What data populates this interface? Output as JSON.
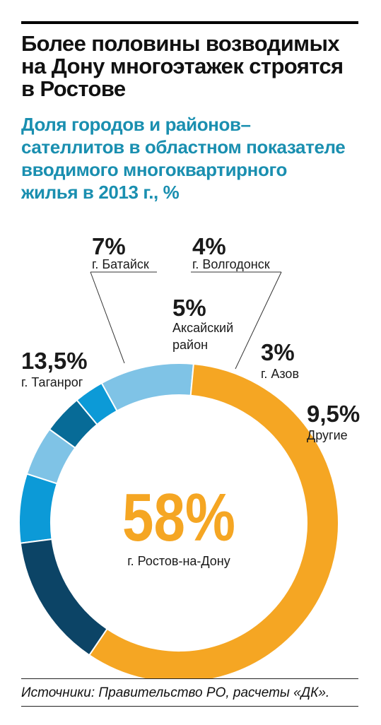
{
  "header": {
    "title_line1": "Более половины возводимых",
    "title_line2": "на Дону многоэтажек строятся",
    "title_line3": "в Ростове",
    "subtitle_line1": "Доля городов и районов–",
    "subtitle_line2": "сателлитов в областном показателе",
    "subtitle_line3": "вводимого многоквартирного",
    "subtitle_line4": "жилья в 2013 г., %"
  },
  "chart_data": {
    "type": "pie",
    "unit": "%",
    "slices": [
      {
        "label": "г. Батайск",
        "value": 7,
        "display": "7%",
        "color": "#0c9ad7"
      },
      {
        "label": "Аксайский район",
        "value": 5,
        "display": "5%",
        "color": "#7fc3e6"
      },
      {
        "label": "г. Волгодонск",
        "value": 4,
        "display": "4%",
        "color": "#076b97"
      },
      {
        "label": "г. Азов",
        "value": 3,
        "display": "3%",
        "color": "#0c9ad7"
      },
      {
        "label": "Другие",
        "value": 9.5,
        "display": "9,5%",
        "color": "#7fc3e6"
      },
      {
        "label": "г. Ростов-на-Дону",
        "value": 58,
        "display": "58%",
        "color": "#f5a623"
      },
      {
        "label": "г. Таганрог",
        "value": 13.5,
        "display": "13,5%",
        "color": "#0c4466"
      }
    ],
    "labels": {
      "aksai_line1": "Аксайский",
      "aksai_line2": "район"
    }
  },
  "footer": {
    "source": "Источники: Правительство РО, расчеты «ДК»."
  }
}
